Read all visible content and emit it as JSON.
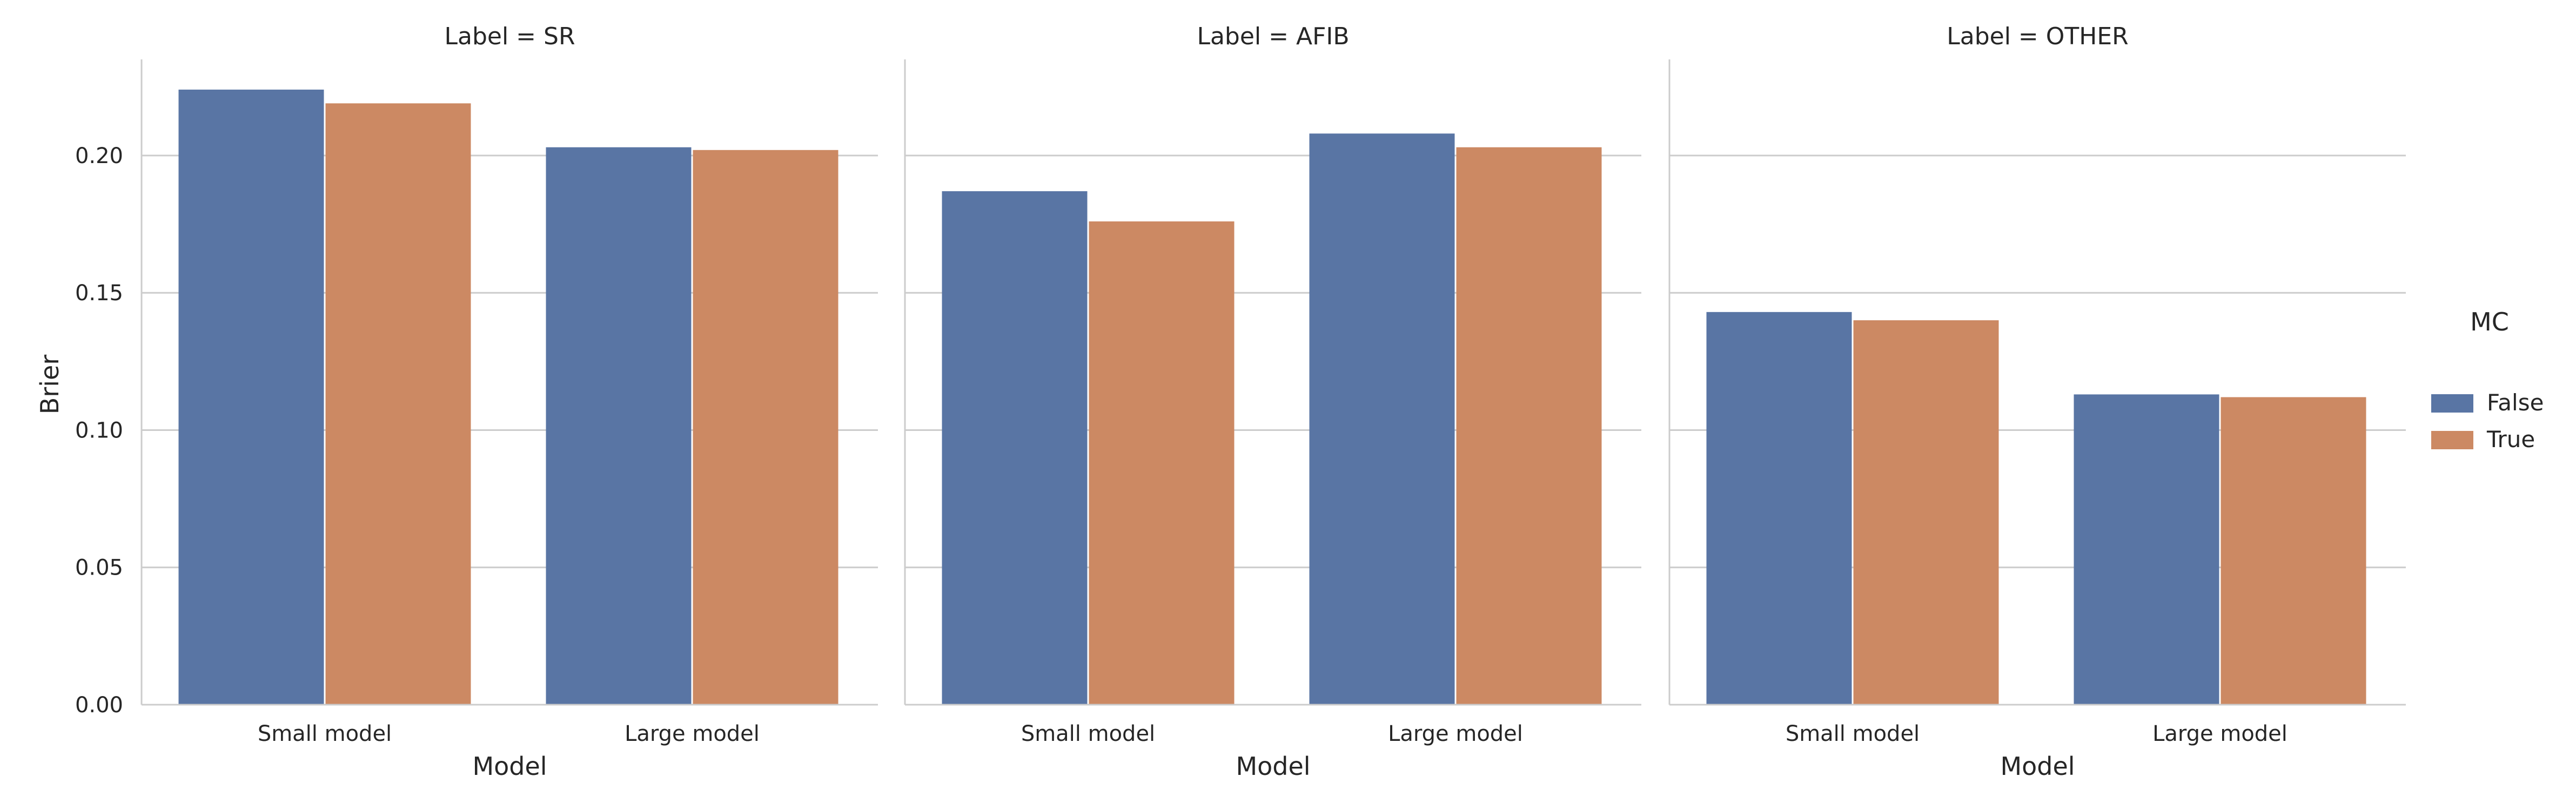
{
  "chart_data": {
    "type": "bar",
    "ylabel": "Brier",
    "ylim": [
      0,
      0.235
    ],
    "yticks": [
      "0.00",
      "0.05",
      "0.10",
      "0.15",
      "0.20"
    ],
    "ytick_values": [
      0,
      0.05,
      0.1,
      0.15,
      0.2
    ],
    "grid": "horizontal",
    "legend": {
      "title": "MC",
      "placement": "right",
      "entries": [
        {
          "name": "False",
          "color": "#5975a4"
        },
        {
          "name": "True",
          "color": "#cc8963"
        }
      ]
    },
    "panels": [
      {
        "title": "Label = SR",
        "xlabel": "Model",
        "categories": [
          "Small model",
          "Large model"
        ],
        "series": [
          {
            "name": "False",
            "values": [
              0.224,
              0.203
            ]
          },
          {
            "name": "True",
            "values": [
              0.219,
              0.202
            ]
          }
        ]
      },
      {
        "title": "Label = AFIB",
        "xlabel": "Model",
        "categories": [
          "Small model",
          "Large model"
        ],
        "series": [
          {
            "name": "False",
            "values": [
              0.187,
              0.208
            ]
          },
          {
            "name": "True",
            "values": [
              0.176,
              0.203
            ]
          }
        ]
      },
      {
        "title": "Label = OTHER",
        "xlabel": "Model",
        "categories": [
          "Small model",
          "Large model"
        ],
        "series": [
          {
            "name": "False",
            "values": [
              0.143,
              0.113
            ]
          },
          {
            "name": "True",
            "values": [
              0.14,
              0.112
            ]
          }
        ]
      }
    ]
  }
}
